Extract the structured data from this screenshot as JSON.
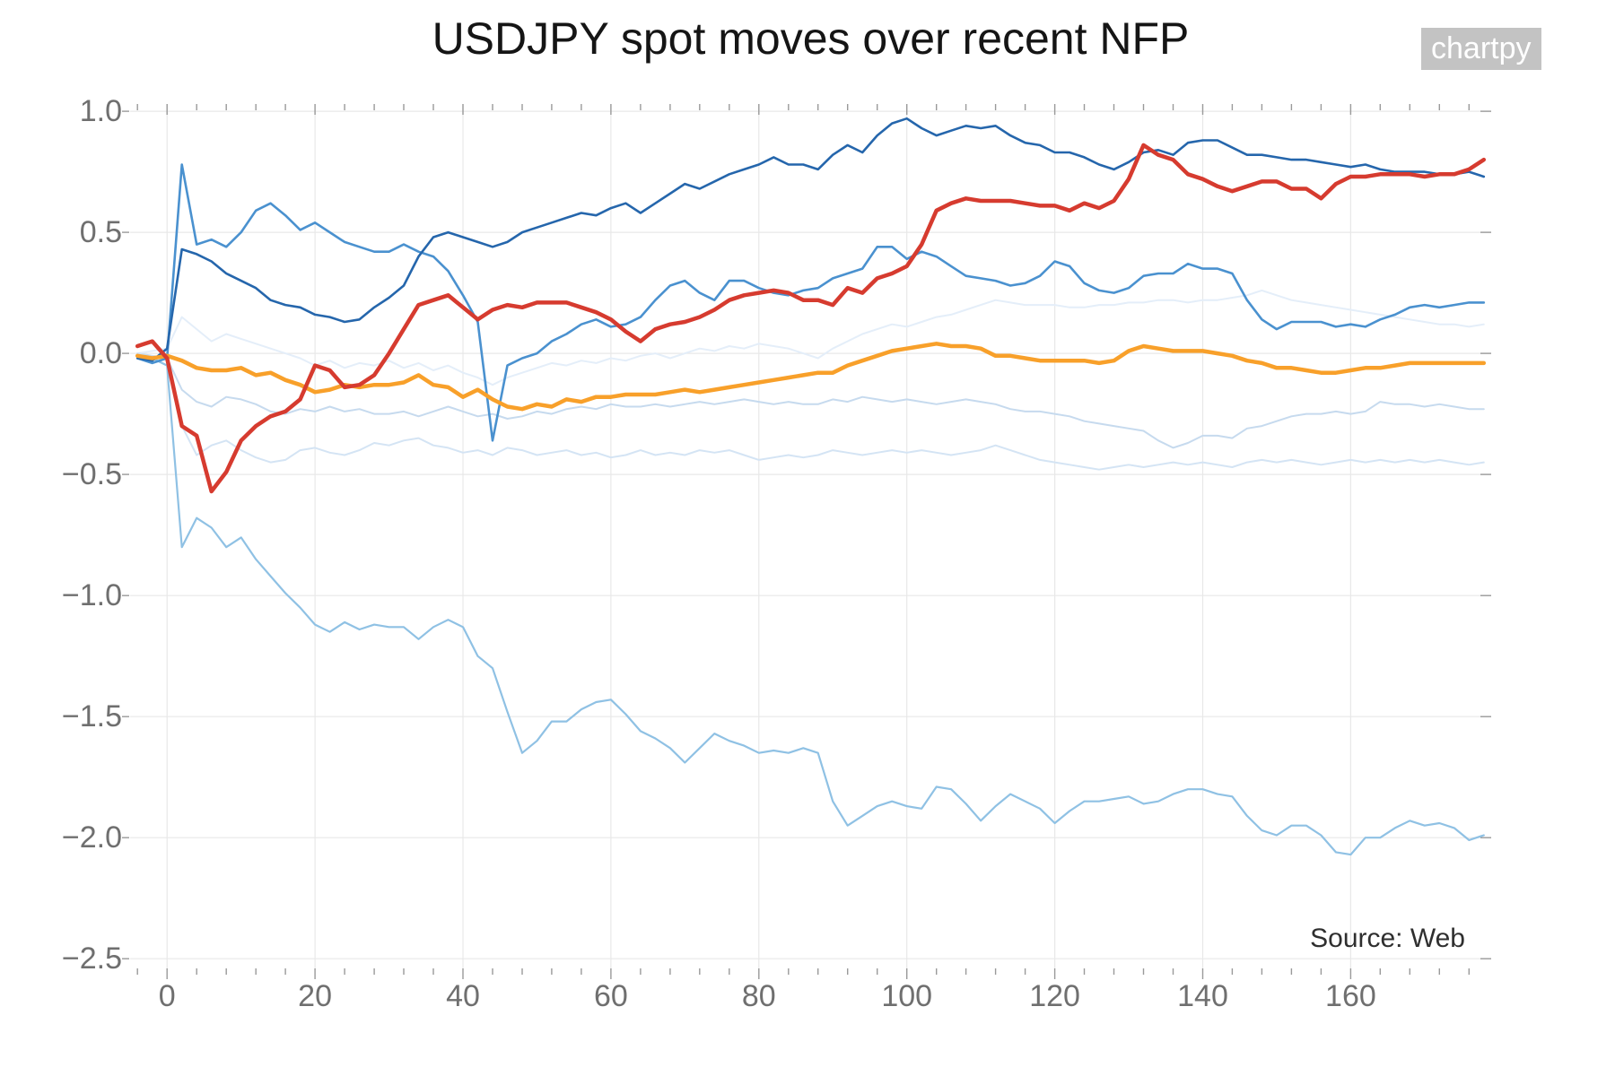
{
  "page": {
    "title": "USDJPY spot moves over recent NFP",
    "watermark": "chartpy",
    "source_note": "Source: Web"
  },
  "chart_data": {
    "type": "line",
    "title": "USDJPY spot moves over recent NFP",
    "xlabel": "",
    "ylabel": "",
    "xlim": [
      -5,
      179
    ],
    "ylim": [
      -2.54,
      1.03
    ],
    "grid": true,
    "legend": false,
    "x_axis": {
      "major_ticks": [
        0,
        20,
        40,
        60,
        80,
        100,
        120,
        140,
        160
      ],
      "minor_step": 4
    },
    "y_axis": {
      "major_ticks": [
        1.0,
        0.5,
        0.0,
        -0.5,
        -1.0,
        -1.5,
        -2.0,
        -2.5
      ],
      "labels": [
        "1.0",
        "0.5",
        "0.0",
        "−0.5",
        "−1.0",
        "−1.5",
        "−2.0",
        "−2.5"
      ]
    },
    "style": {
      "grid_color": "#e8e8e8",
      "tick_color": "#9a9a9a",
      "tick_label_color": "#6f6f6f",
      "title_color": "#151515",
      "watermark_bg": "#c3c3c3",
      "watermark_text": "#ffffff",
      "background": "#ffffff"
    },
    "x": [
      -4,
      -2,
      0,
      2,
      4,
      6,
      8,
      10,
      12,
      14,
      16,
      18,
      20,
      22,
      24,
      26,
      28,
      30,
      32,
      34,
      36,
      38,
      40,
      42,
      44,
      46,
      48,
      50,
      52,
      54,
      56,
      58,
      60,
      62,
      64,
      66,
      68,
      70,
      72,
      74,
      76,
      78,
      80,
      82,
      84,
      86,
      88,
      90,
      92,
      94,
      96,
      98,
      100,
      102,
      104,
      106,
      108,
      110,
      112,
      114,
      116,
      118,
      120,
      122,
      124,
      126,
      128,
      130,
      132,
      134,
      136,
      138,
      140,
      142,
      144,
      146,
      148,
      150,
      152,
      154,
      156,
      158,
      160,
      162,
      164,
      166,
      168,
      170,
      172,
      174,
      176,
      178
    ],
    "series": [
      {
        "name": "pale-1",
        "color": "#e4eef9",
        "line_width": 2,
        "values": [
          0.0,
          0.01,
          0.02,
          0.15,
          0.1,
          0.05,
          0.08,
          0.06,
          0.04,
          0.02,
          0.0,
          -0.02,
          -0.05,
          -0.03,
          -0.06,
          -0.04,
          -0.05,
          -0.03,
          -0.06,
          -0.04,
          -0.07,
          -0.05,
          -0.08,
          -0.1,
          -0.13,
          -0.1,
          -0.08,
          -0.06,
          -0.04,
          -0.05,
          -0.03,
          -0.04,
          -0.02,
          -0.03,
          -0.01,
          0.0,
          -0.02,
          0.0,
          0.02,
          0.01,
          0.03,
          0.02,
          0.04,
          0.03,
          0.02,
          0.0,
          -0.02,
          0.02,
          0.05,
          0.08,
          0.1,
          0.12,
          0.11,
          0.13,
          0.15,
          0.16,
          0.18,
          0.2,
          0.22,
          0.21,
          0.2,
          0.2,
          0.2,
          0.19,
          0.19,
          0.2,
          0.2,
          0.21,
          0.21,
          0.22,
          0.22,
          0.21,
          0.22,
          0.22,
          0.23,
          0.24,
          0.26,
          0.24,
          0.22,
          0.21,
          0.2,
          0.19,
          0.18,
          0.17,
          0.16,
          0.15,
          0.14,
          0.13,
          0.12,
          0.12,
          0.11,
          0.12
        ]
      },
      {
        "name": "pale-2",
        "color": "#c6daee",
        "line_width": 2,
        "values": [
          0.0,
          -0.01,
          -0.02,
          -0.15,
          -0.2,
          -0.22,
          -0.18,
          -0.19,
          -0.21,
          -0.24,
          -0.25,
          -0.23,
          -0.24,
          -0.22,
          -0.24,
          -0.23,
          -0.25,
          -0.25,
          -0.24,
          -0.26,
          -0.24,
          -0.22,
          -0.24,
          -0.26,
          -0.25,
          -0.27,
          -0.26,
          -0.24,
          -0.25,
          -0.23,
          -0.22,
          -0.23,
          -0.21,
          -0.22,
          -0.22,
          -0.21,
          -0.22,
          -0.21,
          -0.2,
          -0.21,
          -0.2,
          -0.19,
          -0.2,
          -0.21,
          -0.2,
          -0.21,
          -0.21,
          -0.19,
          -0.2,
          -0.18,
          -0.19,
          -0.2,
          -0.19,
          -0.2,
          -0.21,
          -0.2,
          -0.19,
          -0.2,
          -0.21,
          -0.23,
          -0.24,
          -0.24,
          -0.25,
          -0.26,
          -0.28,
          -0.29,
          -0.3,
          -0.31,
          -0.32,
          -0.36,
          -0.39,
          -0.37,
          -0.34,
          -0.34,
          -0.35,
          -0.31,
          -0.3,
          -0.28,
          -0.26,
          -0.25,
          -0.25,
          -0.24,
          -0.25,
          -0.24,
          -0.2,
          -0.21,
          -0.21,
          -0.22,
          -0.21,
          -0.22,
          -0.23,
          -0.23
        ]
      },
      {
        "name": "pale-3",
        "color": "#d4e4f4",
        "line_width": 2,
        "values": [
          0.0,
          -0.02,
          -0.05,
          -0.3,
          -0.42,
          -0.38,
          -0.36,
          -0.4,
          -0.43,
          -0.45,
          -0.44,
          -0.4,
          -0.39,
          -0.41,
          -0.42,
          -0.4,
          -0.37,
          -0.38,
          -0.36,
          -0.35,
          -0.38,
          -0.39,
          -0.41,
          -0.4,
          -0.42,
          -0.39,
          -0.4,
          -0.42,
          -0.41,
          -0.4,
          -0.42,
          -0.41,
          -0.43,
          -0.42,
          -0.4,
          -0.42,
          -0.41,
          -0.42,
          -0.4,
          -0.41,
          -0.4,
          -0.42,
          -0.44,
          -0.43,
          -0.42,
          -0.43,
          -0.42,
          -0.4,
          -0.41,
          -0.42,
          -0.41,
          -0.4,
          -0.41,
          -0.4,
          -0.41,
          -0.42,
          -0.41,
          -0.4,
          -0.38,
          -0.4,
          -0.42,
          -0.44,
          -0.45,
          -0.46,
          -0.47,
          -0.48,
          -0.47,
          -0.46,
          -0.47,
          -0.46,
          -0.45,
          -0.46,
          -0.45,
          -0.46,
          -0.47,
          -0.45,
          -0.44,
          -0.45,
          -0.44,
          -0.45,
          -0.46,
          -0.45,
          -0.44,
          -0.45,
          -0.44,
          -0.45,
          -0.44,
          -0.45,
          -0.44,
          -0.45,
          -0.46,
          -0.45
        ]
      },
      {
        "name": "light-blue",
        "color": "#8fc1e4",
        "line_width": 2.2,
        "values": [
          -0.01,
          -0.02,
          -0.05,
          -0.8,
          -0.68,
          -0.72,
          -0.8,
          -0.76,
          -0.85,
          -0.92,
          -0.99,
          -1.05,
          -1.12,
          -1.15,
          -1.11,
          -1.14,
          -1.12,
          -1.13,
          -1.13,
          -1.18,
          -1.13,
          -1.1,
          -1.13,
          -1.25,
          -1.3,
          -1.48,
          -1.65,
          -1.6,
          -1.52,
          -1.52,
          -1.47,
          -1.44,
          -1.43,
          -1.49,
          -1.56,
          -1.59,
          -1.63,
          -1.69,
          -1.63,
          -1.57,
          -1.6,
          -1.62,
          -1.65,
          -1.64,
          -1.65,
          -1.63,
          -1.65,
          -1.85,
          -1.95,
          -1.91,
          -1.87,
          -1.85,
          -1.87,
          -1.88,
          -1.79,
          -1.8,
          -1.86,
          -1.93,
          -1.87,
          -1.82,
          -1.85,
          -1.88,
          -1.94,
          -1.89,
          -1.85,
          -1.85,
          -1.84,
          -1.83,
          -1.86,
          -1.85,
          -1.82,
          -1.8,
          -1.8,
          -1.82,
          -1.83,
          -1.91,
          -1.97,
          -1.99,
          -1.95,
          -1.95,
          -1.99,
          -2.06,
          -2.07,
          -2.0,
          -2.0,
          -1.96,
          -1.93,
          -1.95,
          -1.94,
          -1.96,
          -2.01,
          -1.99
        ]
      },
      {
        "name": "medium-blue",
        "color": "#4a91cf",
        "line_width": 2.6,
        "values": [
          -0.02,
          -0.04,
          -0.02,
          0.78,
          0.45,
          0.47,
          0.44,
          0.5,
          0.59,
          0.62,
          0.57,
          0.51,
          0.54,
          0.5,
          0.46,
          0.44,
          0.42,
          0.42,
          0.45,
          0.42,
          0.4,
          0.34,
          0.24,
          0.13,
          -0.36,
          -0.05,
          -0.02,
          0.0,
          0.05,
          0.08,
          0.12,
          0.14,
          0.11,
          0.12,
          0.15,
          0.22,
          0.28,
          0.3,
          0.25,
          0.22,
          0.3,
          0.3,
          0.27,
          0.25,
          0.24,
          0.26,
          0.27,
          0.31,
          0.33,
          0.35,
          0.44,
          0.44,
          0.39,
          0.42,
          0.4,
          0.36,
          0.32,
          0.31,
          0.3,
          0.28,
          0.29,
          0.32,
          0.38,
          0.36,
          0.29,
          0.26,
          0.25,
          0.27,
          0.32,
          0.33,
          0.33,
          0.37,
          0.35,
          0.35,
          0.33,
          0.22,
          0.14,
          0.1,
          0.13,
          0.13,
          0.13,
          0.11,
          0.12,
          0.11,
          0.14,
          0.16,
          0.19,
          0.2,
          0.19,
          0.2,
          0.21,
          0.21
        ]
      },
      {
        "name": "dark-blue",
        "color": "#2566ac",
        "line_width": 2.6,
        "values": [
          -0.02,
          -0.03,
          0.02,
          0.43,
          0.41,
          0.38,
          0.33,
          0.3,
          0.27,
          0.22,
          0.2,
          0.19,
          0.16,
          0.15,
          0.13,
          0.14,
          0.19,
          0.23,
          0.28,
          0.4,
          0.48,
          0.5,
          0.48,
          0.46,
          0.44,
          0.46,
          0.5,
          0.52,
          0.54,
          0.56,
          0.58,
          0.57,
          0.6,
          0.62,
          0.58,
          0.62,
          0.66,
          0.7,
          0.68,
          0.71,
          0.74,
          0.76,
          0.78,
          0.81,
          0.78,
          0.78,
          0.76,
          0.82,
          0.86,
          0.83,
          0.9,
          0.95,
          0.97,
          0.93,
          0.9,
          0.92,
          0.94,
          0.93,
          0.94,
          0.9,
          0.87,
          0.86,
          0.83,
          0.83,
          0.81,
          0.78,
          0.76,
          0.79,
          0.83,
          0.84,
          0.82,
          0.87,
          0.88,
          0.88,
          0.85,
          0.82,
          0.82,
          0.81,
          0.8,
          0.8,
          0.79,
          0.78,
          0.77,
          0.78,
          0.76,
          0.75,
          0.75,
          0.75,
          0.74,
          0.74,
          0.75,
          0.73
        ]
      },
      {
        "name": "orange",
        "color": "#f8a02a",
        "line_width": 4.5,
        "values": [
          -0.01,
          -0.02,
          -0.01,
          -0.03,
          -0.06,
          -0.07,
          -0.07,
          -0.06,
          -0.09,
          -0.08,
          -0.11,
          -0.13,
          -0.16,
          -0.15,
          -0.13,
          -0.14,
          -0.13,
          -0.13,
          -0.12,
          -0.09,
          -0.13,
          -0.14,
          -0.18,
          -0.15,
          -0.19,
          -0.22,
          -0.23,
          -0.21,
          -0.22,
          -0.19,
          -0.2,
          -0.18,
          -0.18,
          -0.17,
          -0.17,
          -0.17,
          -0.16,
          -0.15,
          -0.16,
          -0.15,
          -0.14,
          -0.13,
          -0.12,
          -0.11,
          -0.1,
          -0.09,
          -0.08,
          -0.08,
          -0.05,
          -0.03,
          -0.01,
          0.01,
          0.02,
          0.03,
          0.04,
          0.03,
          0.03,
          0.02,
          -0.01,
          -0.01,
          -0.02,
          -0.03,
          -0.03,
          -0.03,
          -0.03,
          -0.04,
          -0.03,
          0.01,
          0.03,
          0.02,
          0.01,
          0.01,
          0.01,
          0.0,
          -0.01,
          -0.03,
          -0.04,
          -0.06,
          -0.06,
          -0.07,
          -0.08,
          -0.08,
          -0.07,
          -0.06,
          -0.06,
          -0.05,
          -0.04,
          -0.04,
          -0.04,
          -0.04,
          -0.04,
          -0.04
        ]
      },
      {
        "name": "red",
        "color": "#d63b2f",
        "line_width": 4.5,
        "values": [
          0.03,
          0.05,
          -0.02,
          -0.3,
          -0.34,
          -0.57,
          -0.49,
          -0.36,
          -0.3,
          -0.26,
          -0.24,
          -0.19,
          -0.05,
          -0.07,
          -0.14,
          -0.13,
          -0.09,
          0.0,
          0.1,
          0.2,
          0.22,
          0.24,
          0.19,
          0.14,
          0.18,
          0.2,
          0.19,
          0.21,
          0.21,
          0.21,
          0.19,
          0.17,
          0.14,
          0.09,
          0.05,
          0.1,
          0.12,
          0.13,
          0.15,
          0.18,
          0.22,
          0.24,
          0.25,
          0.26,
          0.25,
          0.22,
          0.22,
          0.2,
          0.27,
          0.25,
          0.31,
          0.33,
          0.36,
          0.45,
          0.59,
          0.62,
          0.64,
          0.63,
          0.63,
          0.63,
          0.62,
          0.61,
          0.61,
          0.59,
          0.62,
          0.6,
          0.63,
          0.72,
          0.86,
          0.82,
          0.8,
          0.74,
          0.72,
          0.69,
          0.67,
          0.69,
          0.71,
          0.71,
          0.68,
          0.68,
          0.64,
          0.7,
          0.73,
          0.73,
          0.74,
          0.74,
          0.74,
          0.73,
          0.74,
          0.74,
          0.76,
          0.8
        ]
      }
    ]
  }
}
